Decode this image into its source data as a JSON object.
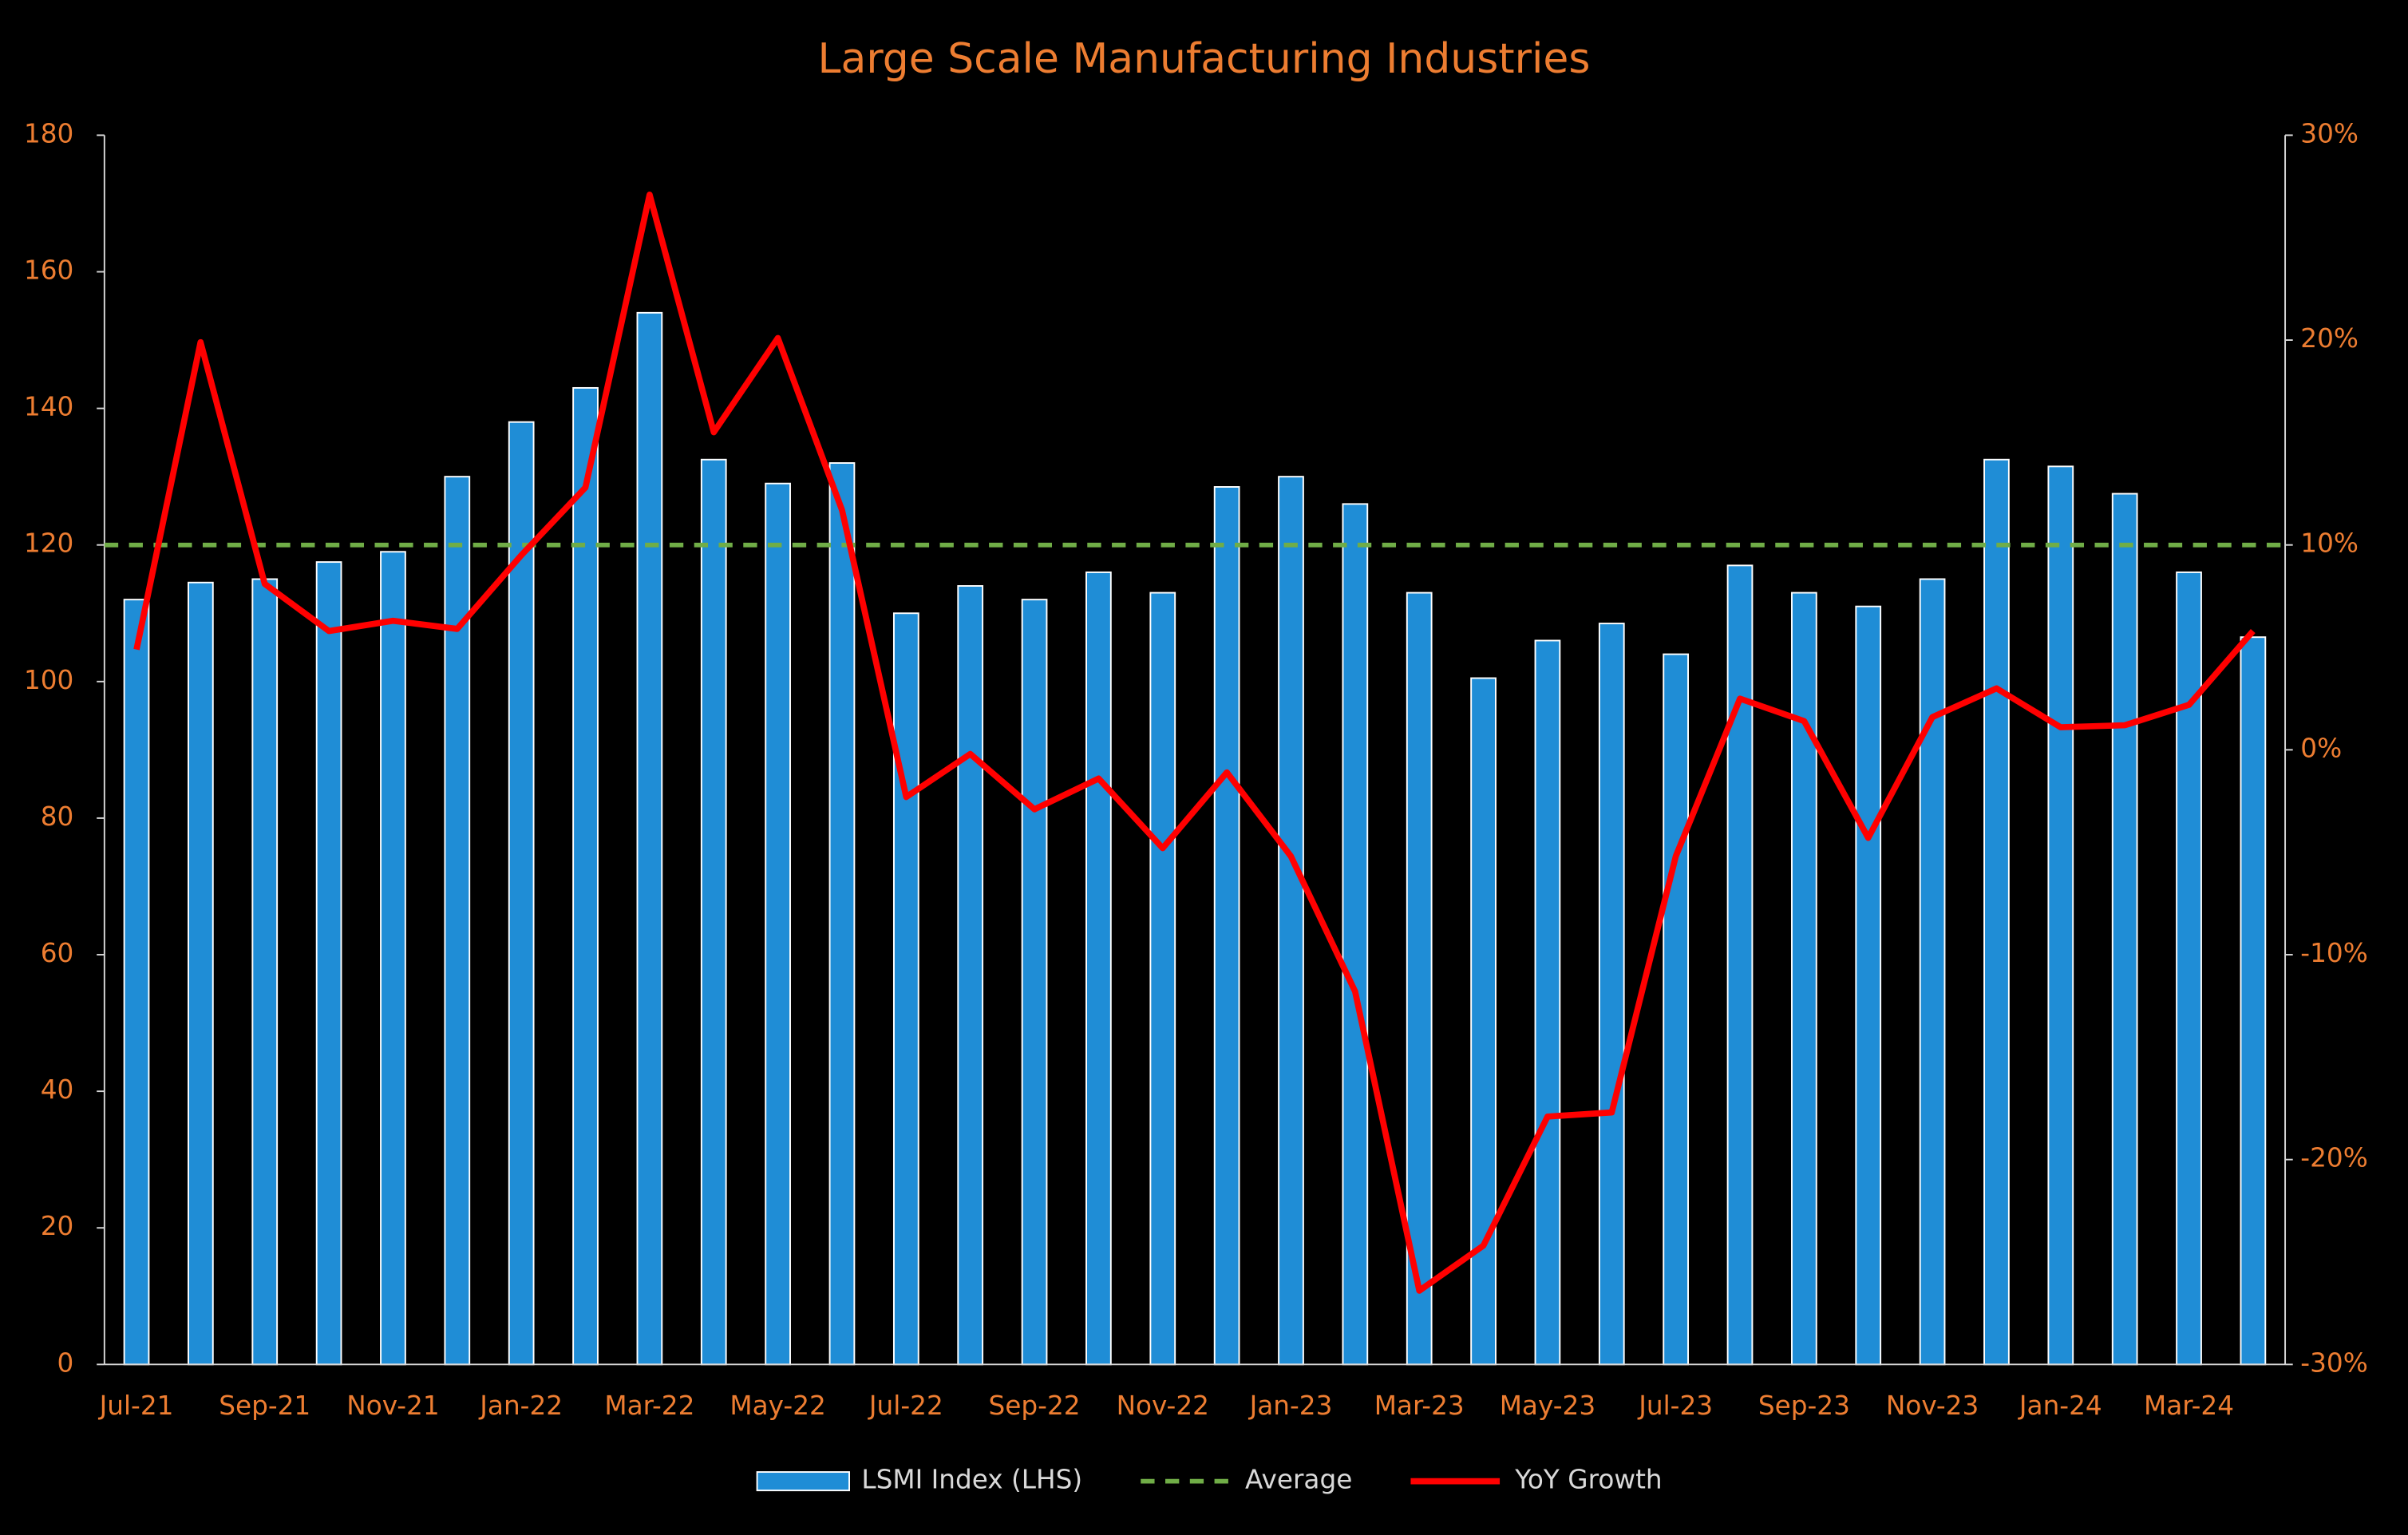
{
  "chart_data": {
    "type": "bar-line",
    "title": "Large Scale Manufacturing Industries",
    "categories": [
      "Jul-21",
      null,
      "Sep-21",
      null,
      "Nov-21",
      null,
      "Jan-22",
      null,
      "Mar-22",
      null,
      "May-22",
      null,
      "Jul-22",
      null,
      "Sep-22",
      null,
      "Nov-22",
      null,
      "Jan-23",
      null,
      "Mar-23",
      null,
      "May-23",
      null,
      "Jul-23",
      null,
      "Sep-23",
      null,
      "Nov-23",
      null,
      "Jan-24",
      null,
      "Mar-24",
      null
    ],
    "series": [
      {
        "name": "LSMI Index (LHS)",
        "type": "bar",
        "color": "#1f8dd6",
        "values": [
          112,
          114.5,
          115,
          117.5,
          119,
          130,
          138,
          143,
          154,
          132.5,
          129,
          132,
          110,
          114,
          112,
          116,
          113,
          128.5,
          130,
          126,
          113,
          100.5,
          106,
          108.5,
          104,
          117,
          113,
          111,
          115,
          132.5,
          131.5,
          127.5,
          116,
          106.5
        ]
      },
      {
        "name": "Average",
        "type": "hline",
        "color": "#70ad47",
        "dashed": true,
        "value": 120
      },
      {
        "name": "YoY Growth",
        "type": "line",
        "axis": "y2",
        "color": "#ff0000",
        "values": [
          4.9,
          19.9,
          8.1,
          5.8,
          6.3,
          5.9,
          9.5,
          12.8,
          27.1,
          15.5,
          20.1,
          11.7,
          -2.3,
          -0.2,
          -2.9,
          -1.4,
          -4.8,
          -1.1,
          -5.2,
          -11.8,
          -26.4,
          -24.2,
          -17.9,
          -17.7,
          -5.2,
          2.5,
          1.4,
          -4.3,
          1.6,
          3.0,
          1.1,
          1.2,
          2.2,
          5.8
        ]
      }
    ],
    "ylim": [
      0,
      180
    ],
    "yticks": [
      0,
      20,
      40,
      60,
      80,
      100,
      120,
      140,
      160,
      180
    ],
    "y2lim": [
      -30,
      30
    ],
    "y2ticks": [
      {
        "value": -30,
        "label": "-30%"
      },
      {
        "value": -20,
        "label": "-20%"
      },
      {
        "value": -10,
        "label": "-10%"
      },
      {
        "value": 0,
        "label": "0%"
      },
      {
        "value": 10,
        "label": "10%"
      },
      {
        "value": 20,
        "label": "20%"
      },
      {
        "value": 30,
        "label": "30%"
      }
    ],
    "legend": "bottom",
    "grid": false
  }
}
